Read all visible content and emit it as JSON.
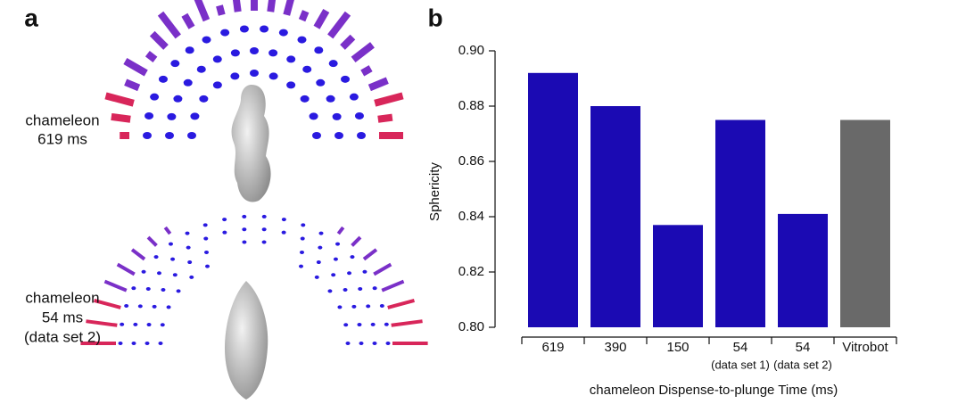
{
  "panel_labels": [
    "a",
    "b"
  ],
  "image_labels": [
    [
      "chameleon",
      "619 ms"
    ],
    [
      "chameleon",
      "54 ms",
      "(data set 2)"
    ]
  ],
  "chart_data": {
    "type": "bar",
    "ylabel": "Sphericity",
    "xlabel": "chameleon Dispense-to-plunge Time (ms)",
    "categories": [
      "619",
      "390",
      "150",
      "54",
      "54",
      "Vitrobot"
    ],
    "category_sublabels": [
      null,
      null,
      null,
      "(data set 1)",
      "(data set 2)",
      null
    ],
    "values": [
      0.892,
      0.88,
      0.837,
      0.875,
      0.841,
      0.875
    ],
    "colors": [
      "#1b0ab3",
      "#1b0ab3",
      "#1b0ab3",
      "#1b0ab3",
      "#1b0ab3",
      "#696969"
    ],
    "ylim": [
      0.8,
      0.9
    ],
    "yticks": [
      {
        "value": 0.8,
        "label": "0.80"
      },
      {
        "value": 0.82,
        "label": "0.82"
      },
      {
        "value": 0.84,
        "label": "0.84"
      },
      {
        "value": 0.86,
        "label": "0.86"
      },
      {
        "value": 0.88,
        "label": "0.88"
      },
      {
        "value": 0.9,
        "label": "0.90"
      }
    ],
    "grid": false
  }
}
